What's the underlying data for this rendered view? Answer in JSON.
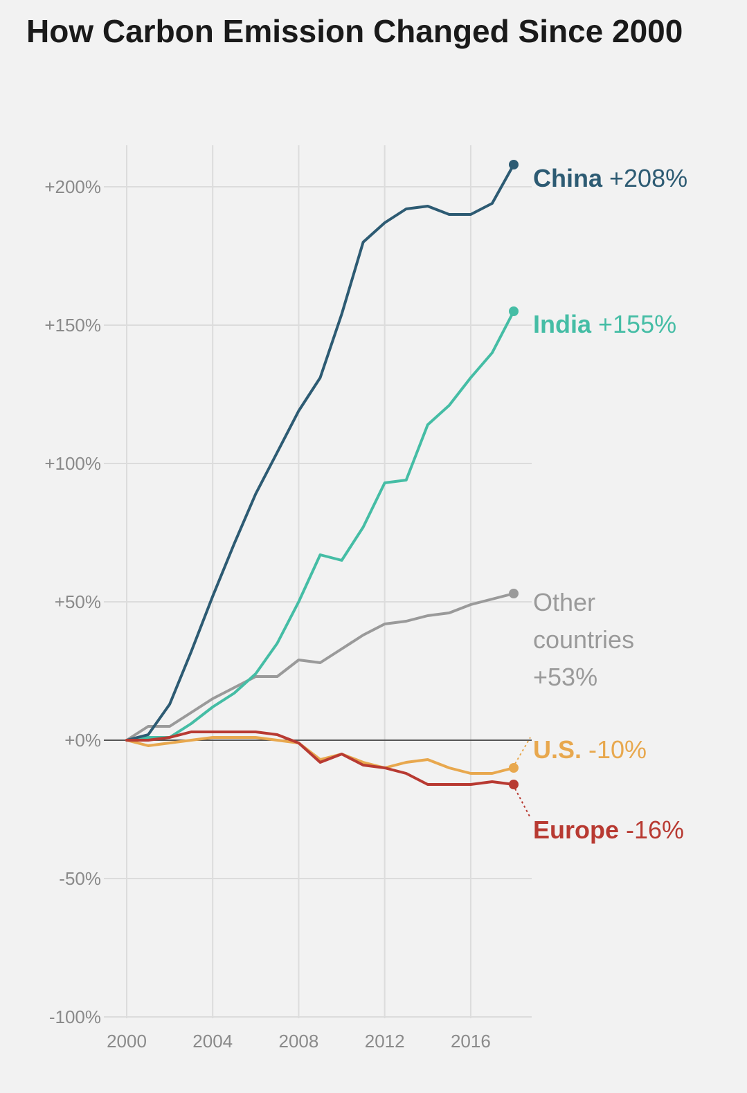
{
  "chart_data": {
    "type": "line",
    "title": "How Carbon Emission Changed Since 2000",
    "xlabel": "",
    "ylabel": "",
    "xlim": [
      2000,
      2018
    ],
    "ylim": [
      -100,
      225
    ],
    "x_ticks": [
      2000,
      2004,
      2008,
      2012,
      2016
    ],
    "y_ticks": [
      200,
      150,
      100,
      50,
      0,
      -50,
      -100
    ],
    "y_tick_labels": [
      "+200%",
      "+150%",
      "+100%",
      "+50%",
      "+0%",
      "-50%",
      "-100%"
    ],
    "grid": true,
    "x": [
      2000,
      2001,
      2002,
      2003,
      2004,
      2005,
      2006,
      2007,
      2008,
      2009,
      2010,
      2011,
      2012,
      2013,
      2014,
      2015,
      2016,
      2017,
      2018
    ],
    "series": [
      {
        "name": "China",
        "end_value_label": "+208%",
        "color": "#2d5b73",
        "values": [
          0,
          2,
          13,
          32,
          52,
          71,
          89,
          104,
          119,
          131,
          154,
          180,
          187,
          192,
          193,
          190,
          190,
          194,
          208
        ]
      },
      {
        "name": "India",
        "end_value_label": "+155%",
        "color": "#45bda5",
        "values": [
          0,
          1,
          1,
          6,
          12,
          17,
          24,
          35,
          50,
          67,
          65,
          77,
          93,
          94,
          114,
          121,
          131,
          140,
          155
        ]
      },
      {
        "name": "Other countries",
        "name_lines": [
          "Other",
          "countries"
        ],
        "end_value_label": "+53%",
        "color": "#9a9a9a",
        "values": [
          0,
          5,
          5,
          10,
          15,
          19,
          23,
          23,
          29,
          28,
          33,
          38,
          42,
          43,
          45,
          46,
          49,
          51,
          53
        ]
      },
      {
        "name": "U.S.",
        "end_value_label": "-10%",
        "color": "#e8a84e",
        "values": [
          0,
          -2,
          -1,
          0,
          1,
          1,
          1,
          0,
          -1,
          -7,
          -5,
          -8,
          -10,
          -8,
          -7,
          -10,
          -12,
          -12,
          -10
        ]
      },
      {
        "name": "Europe",
        "end_value_label": "-16%",
        "color": "#b83a32",
        "values": [
          0,
          0,
          1,
          3,
          3,
          3,
          3,
          2,
          -1,
          -8,
          -5,
          -9,
          -10,
          -12,
          -16,
          -16,
          -16,
          -15,
          -16
        ]
      }
    ]
  }
}
